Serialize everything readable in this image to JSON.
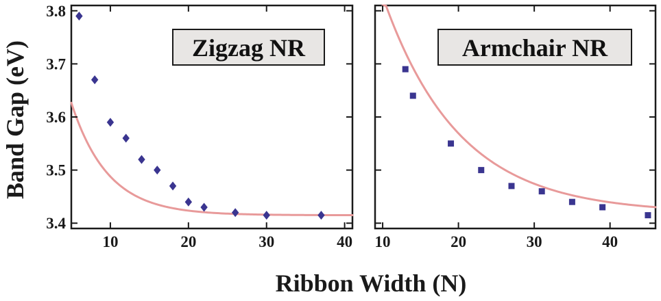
{
  "figure": {
    "ylabel": "Band Gap (eV)",
    "xlabel": "Ribbon Width (N)"
  },
  "colors": {
    "marker": "#3a3590",
    "fit_curve": "#e89a9a",
    "axis": "#1a1a1a",
    "label_box_fill": "#e8e6e4"
  },
  "chart_data": [
    {
      "type": "scatter",
      "title": "Zigzag NR",
      "marker": "diamond",
      "xlabel": "Ribbon Width (N)",
      "ylabel": "Band Gap (eV)",
      "xlim": [
        5,
        41
      ],
      "ylim": [
        3.39,
        3.81
      ],
      "xticks": [
        10,
        20,
        30,
        40
      ],
      "yticks": [
        3.4,
        3.5,
        3.6,
        3.7,
        3.8
      ],
      "points": {
        "x": [
          6,
          8,
          10,
          12,
          14,
          16,
          18,
          20,
          22,
          26,
          30,
          37
        ],
        "y": [
          3.79,
          3.67,
          3.59,
          3.56,
          3.52,
          3.5,
          3.47,
          3.44,
          3.43,
          3.42,
          3.415,
          3.415
        ]
      },
      "fit": {
        "model": "exponential",
        "a": 3.415,
        "b": 0.615,
        "c": 0.2133,
        "x_range": [
          5,
          41
        ]
      }
    },
    {
      "type": "scatter",
      "title": "Armchair NR",
      "marker": "square",
      "xlabel": "Ribbon Width (N)",
      "ylabel": "Band Gap (eV)",
      "xlim": [
        9,
        46
      ],
      "ylim": [
        3.39,
        3.81
      ],
      "xticks": [
        10,
        20,
        30,
        40
      ],
      "yticks": [
        3.4,
        3.5,
        3.6,
        3.7,
        3.8
      ],
      "points": {
        "x": [
          13,
          14,
          19,
          23,
          27,
          31,
          35,
          39,
          45
        ],
        "y": [
          3.69,
          3.64,
          3.55,
          3.5,
          3.47,
          3.46,
          3.44,
          3.43,
          3.415
        ]
      },
      "fit": {
        "model": "exponential",
        "a": 3.419,
        "b": 1.11,
        "c": 0.1,
        "x_range": [
          10,
          46
        ]
      }
    }
  ]
}
